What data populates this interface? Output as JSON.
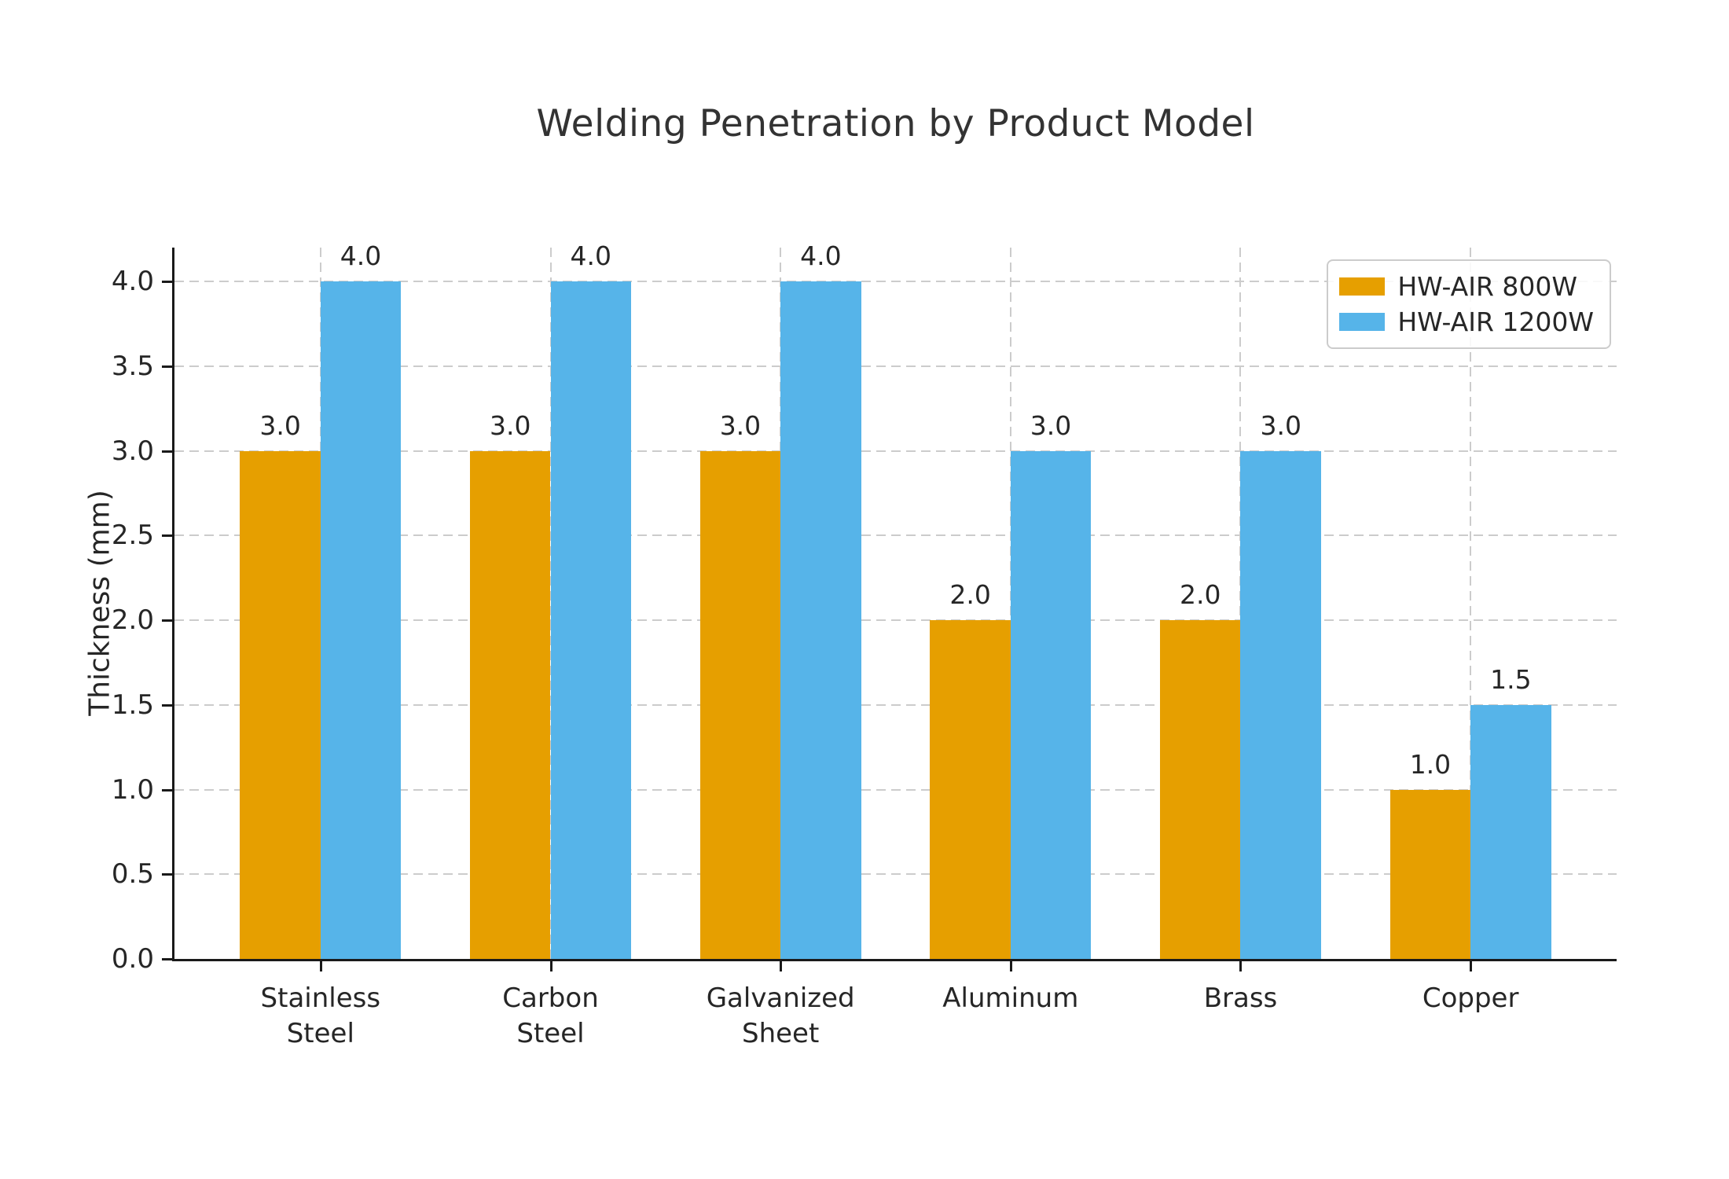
{
  "chart_data": {
    "type": "bar",
    "title": "Welding Penetration by Product Model",
    "ylabel": "Thickness (mm)",
    "xlabel": "",
    "categories": [
      "Stainless\nSteel",
      "Carbon\nSteel",
      "Galvanized\nSheet",
      "Aluminum",
      "Brass",
      "Copper"
    ],
    "series": [
      {
        "name": "HW-AIR 800W",
        "color": "#E69F00",
        "values": [
          3.0,
          3.0,
          3.0,
          2.0,
          2.0,
          1.0
        ]
      },
      {
        "name": "HW-AIR 1200W",
        "color": "#56B4E9",
        "values": [
          4.0,
          4.0,
          4.0,
          3.0,
          3.0,
          1.5
        ]
      }
    ],
    "bar_value_labels": [
      [
        "3.0",
        "3.0",
        "3.0",
        "2.0",
        "2.0",
        "1.0"
      ],
      [
        "4.0",
        "4.0",
        "4.0",
        "3.0",
        "3.0",
        "1.5"
      ]
    ],
    "y_ticks": [
      "0.0",
      "0.5",
      "1.0",
      "1.5",
      "2.0",
      "2.5",
      "3.0",
      "3.5",
      "4.0"
    ],
    "y_tick_values": [
      0,
      0.5,
      1,
      1.5,
      2,
      2.5,
      3,
      3.5,
      4
    ],
    "ylim": [
      0,
      4.2
    ],
    "grid": true,
    "legend_position": "upper right",
    "colors": {
      "grid": "#cccccc",
      "axis": "#1a1a1a",
      "title_text": "#333333",
      "tick_text": "#262626",
      "background": "#ffffff",
      "legend_border": "#cccccc"
    }
  }
}
